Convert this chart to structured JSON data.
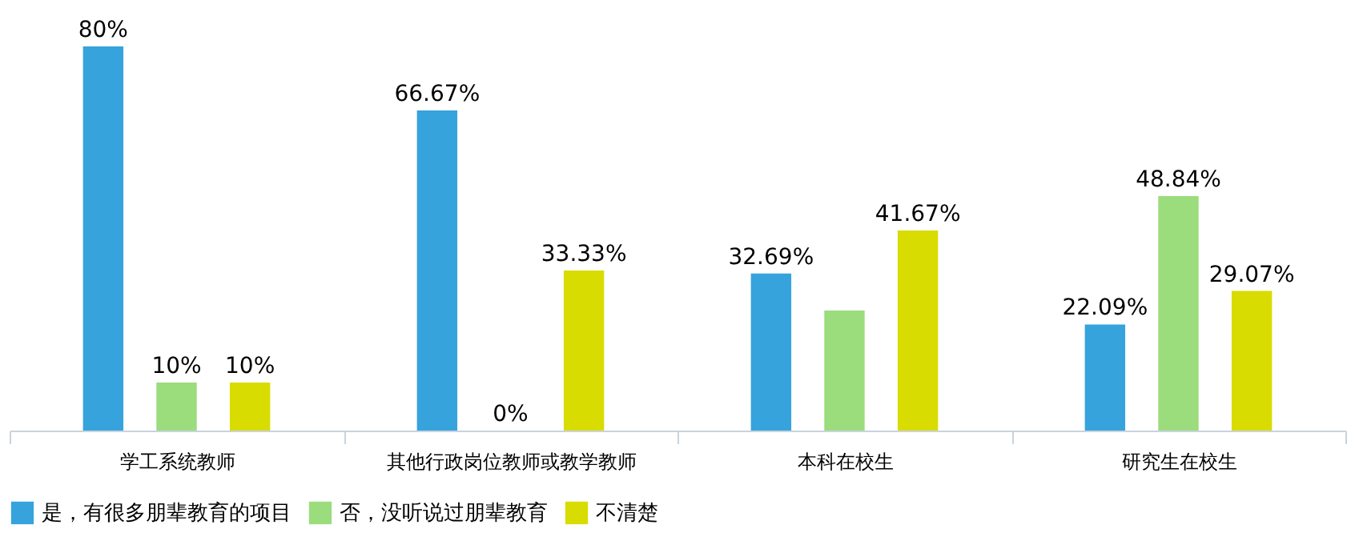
{
  "chart_data": {
    "type": "bar",
    "categories": [
      "学工系统教师",
      "其他行政岗位教师或教学教师",
      "本科在校生",
      "研究生在校生"
    ],
    "legend": "bottom",
    "grid": false,
    "tick_labels": "x",
    "series": [
      {
        "name": "是，有很多朋辈教育的项目",
        "color": "#36a3dc",
        "values": [
          80,
          66.67,
          32.69,
          22.09
        ],
        "value_labels": [
          "80%",
          "66.67%",
          "32.69%",
          "22.09%"
        ]
      },
      {
        "name": "否，没听说过朋辈教育",
        "color": "#9bdc7d",
        "values": [
          10,
          0,
          25,
          48.84
        ],
        "value_labels": [
          "10%",
          "0%",
          null,
          "48.84%"
        ]
      },
      {
        "name": "不清楚",
        "color": "#d9dc00",
        "values": [
          10,
          33.33,
          41.67,
          29.07
        ],
        "value_labels": [
          "10%",
          "33.33%",
          "41.67%",
          "29.07%"
        ]
      }
    ]
  }
}
